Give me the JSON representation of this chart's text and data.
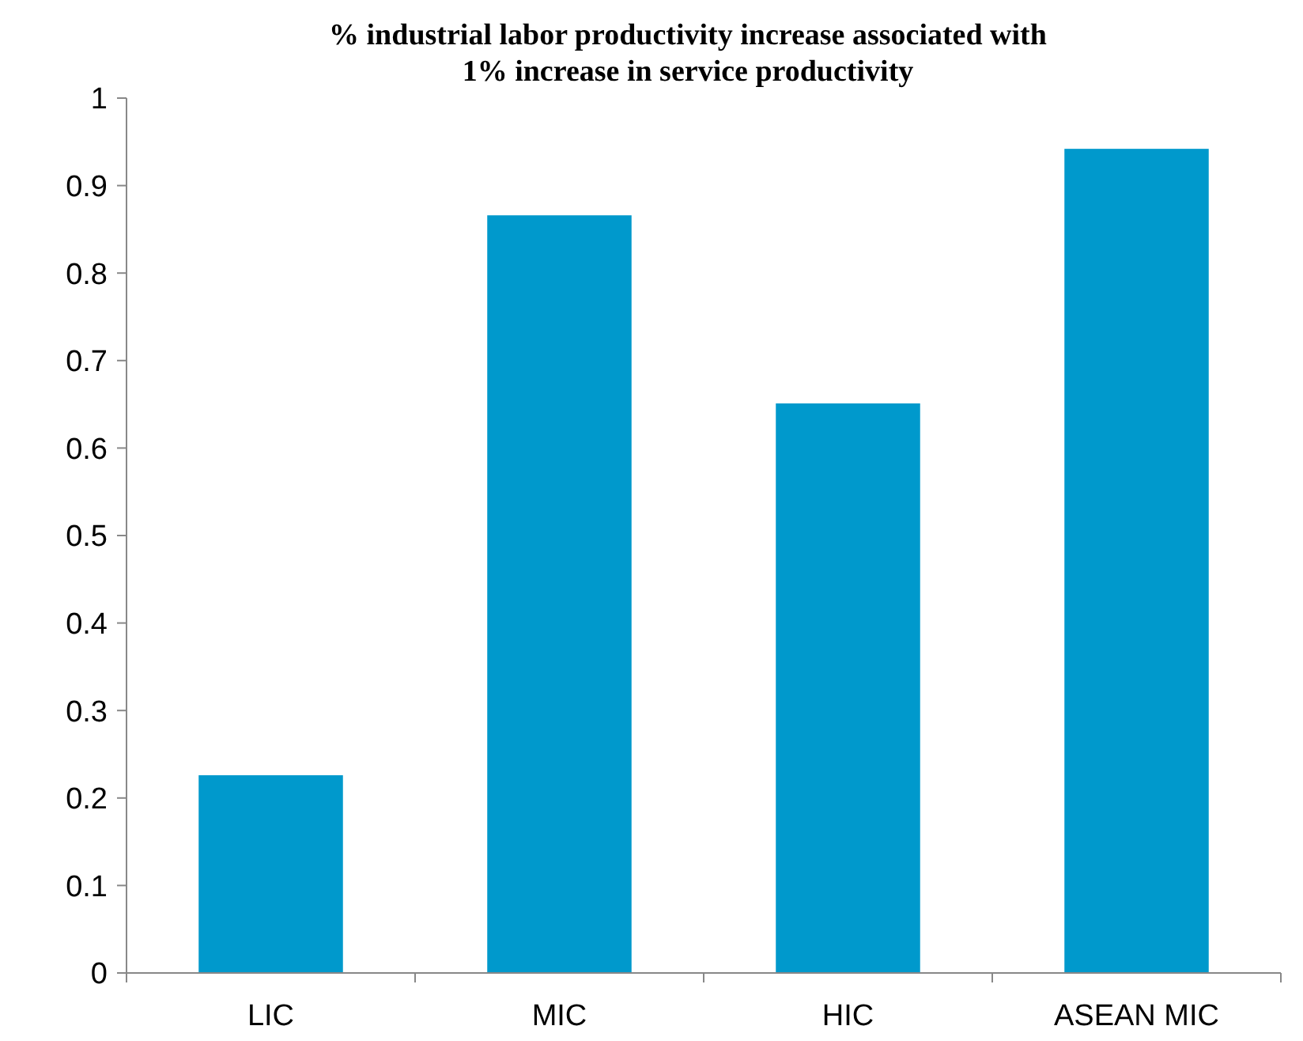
{
  "chart_data": {
    "type": "bar",
    "title": "% industrial labor productivity increase associated with 1% increase in service productivity",
    "categories": [
      "LIC",
      "MIC",
      "HIC",
      "ASEAN MIC"
    ],
    "values": [
      0.226,
      0.866,
      0.651,
      0.942
    ],
    "color": "#0099cc",
    "ylim": [
      0,
      1
    ],
    "yticks": [
      0,
      0.1,
      0.2,
      0.3,
      0.4,
      0.5,
      0.6,
      0.7,
      0.8,
      0.9,
      1
    ],
    "grid": false
  }
}
